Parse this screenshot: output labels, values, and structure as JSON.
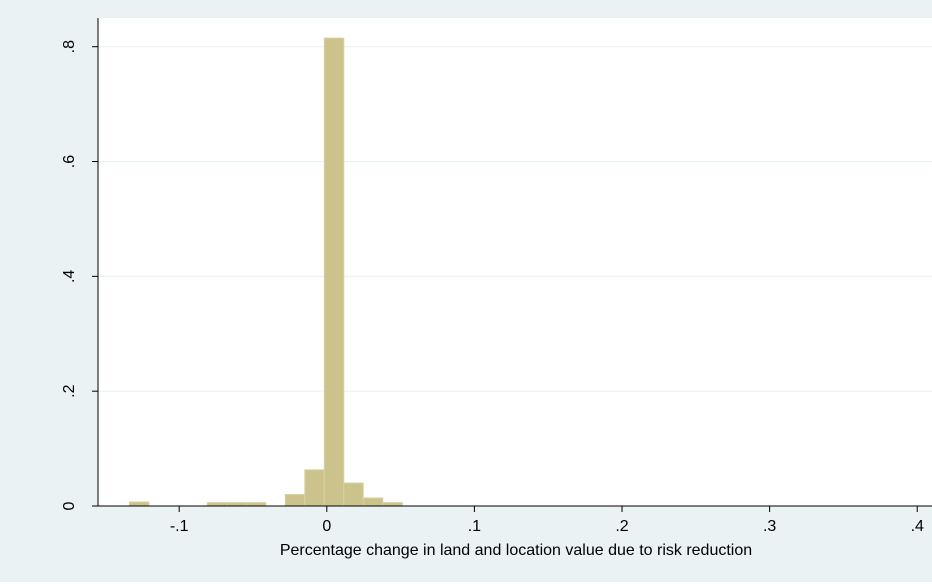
{
  "chart_data": {
    "type": "bar",
    "xlabel": "Percentage change in land and location value due to risk reduction",
    "ylabel": "",
    "xlim": [
      -0.155,
      0.41
    ],
    "ylim": [
      0,
      0.85
    ],
    "x_ticks": [
      {
        "value": -0.1,
        "label": "-.1"
      },
      {
        "value": 0,
        "label": "0"
      },
      {
        "value": 0.1,
        "label": ".1"
      },
      {
        "value": 0.2,
        "label": ".2"
      },
      {
        "value": 0.3,
        "label": ".3"
      },
      {
        "value": 0.4,
        "label": ".4"
      }
    ],
    "y_ticks": [
      {
        "value": 0,
        "label": "0"
      },
      {
        "value": 0.2,
        "label": ".2"
      },
      {
        "value": 0.4,
        "label": ".4"
      },
      {
        "value": 0.6,
        "label": ".6"
      },
      {
        "value": 0.8,
        "label": ".8"
      }
    ],
    "bin_width": 0.0132,
    "bins": [
      {
        "x0": -0.1337,
        "x1": -0.1205,
        "value": 0.007
      },
      {
        "x0": -0.0809,
        "x1": -0.0677,
        "value": 0.006
      },
      {
        "x0": -0.0677,
        "x1": -0.0545,
        "value": 0.006
      },
      {
        "x0": -0.0545,
        "x1": -0.0413,
        "value": 0.006
      },
      {
        "x0": -0.0281,
        "x1": -0.0149,
        "value": 0.02
      },
      {
        "x0": -0.0149,
        "x1": -0.0017,
        "value": 0.063
      },
      {
        "x0": -0.0017,
        "x1": 0.0115,
        "value": 0.815
      },
      {
        "x0": 0.0115,
        "x1": 0.0247,
        "value": 0.04
      },
      {
        "x0": 0.0247,
        "x1": 0.0379,
        "value": 0.014
      },
      {
        "x0": 0.0379,
        "x1": 0.0511,
        "value": 0.006
      }
    ],
    "grid": true,
    "legend": "none",
    "colors": {
      "bar_fill": "#cbc38b",
      "bar_stroke": "#d8d2a4",
      "background": "#eaf2f3",
      "plot_background": "#ffffff",
      "grid": "#eaf2f3"
    }
  }
}
